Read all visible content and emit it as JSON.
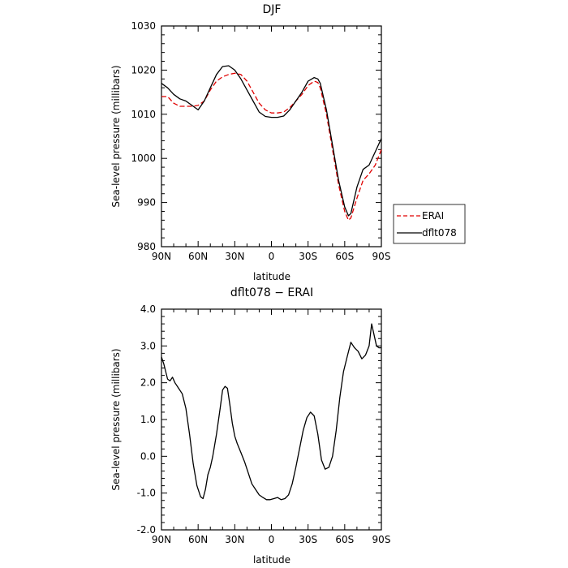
{
  "chart_data": [
    {
      "type": "line",
      "title": "DJF",
      "xlabel": "latitude",
      "ylabel": "Sea-level pressure (millibars)",
      "x_categories": [
        "90N",
        "60N",
        "30N",
        "0",
        "30S",
        "60S",
        "90S"
      ],
      "xlim": [
        90,
        -90
      ],
      "ylim": [
        980,
        1030
      ],
      "y_ticks": [
        980,
        990,
        1000,
        1010,
        1020,
        1030
      ],
      "grid": false,
      "legend": {
        "placement": "right",
        "entries": [
          "ERAI",
          "dflt078"
        ]
      },
      "series": [
        {
          "name": "ERAI",
          "color": "#e00000",
          "dash": "dashed",
          "x": [
            90,
            85,
            80,
            75,
            70,
            65,
            60,
            55,
            50,
            45,
            40,
            35,
            30,
            25,
            20,
            15,
            10,
            5,
            0,
            -5,
            -10,
            -15,
            -20,
            -25,
            -30,
            -35,
            -38,
            -40,
            -45,
            -50,
            -55,
            -60,
            -63,
            -65,
            -70,
            -75,
            -80,
            -85,
            -90
          ],
          "values": [
            1014,
            1014,
            1012.5,
            1011.8,
            1011.8,
            1011.8,
            1012,
            1013,
            1015.5,
            1017.5,
            1018.5,
            1019,
            1019.3,
            1019,
            1017.5,
            1015,
            1012.5,
            1011,
            1010.3,
            1010.3,
            1010.5,
            1011.5,
            1013,
            1014.5,
            1016.5,
            1017.5,
            1017.2,
            1016,
            1010,
            1002,
            994,
            988,
            986,
            986.5,
            991,
            995,
            996.5,
            998.5,
            1002
          ]
        },
        {
          "name": "dflt078",
          "color": "#000000",
          "dash": "solid",
          "x": [
            90,
            85,
            80,
            75,
            70,
            65,
            60,
            55,
            50,
            45,
            40,
            35,
            30,
            25,
            20,
            15,
            10,
            5,
            0,
            -5,
            -10,
            -15,
            -20,
            -25,
            -30,
            -35,
            -38,
            -40,
            -45,
            -50,
            -55,
            -60,
            -63,
            -65,
            -70,
            -75,
            -80,
            -85,
            -90
          ],
          "values": [
            1017,
            1016,
            1014.5,
            1013.5,
            1013,
            1012,
            1011,
            1013,
            1016,
            1019,
            1020.8,
            1021,
            1020,
            1018,
            1015.5,
            1013,
            1010.5,
            1009.5,
            1009.3,
            1009.3,
            1009.6,
            1011,
            1013,
            1015,
            1017.5,
            1018.3,
            1018,
            1017,
            1011,
            1003,
            995,
            989,
            987,
            987.5,
            993.5,
            997.5,
            998.5,
            1001.5,
            1004.5
          ]
        }
      ]
    },
    {
      "type": "line",
      "title": "dflt078 − ERAI",
      "xlabel": "latitude",
      "ylabel": "Sea-level pressure (millibars)",
      "x_categories": [
        "90N",
        "60N",
        "30N",
        "0",
        "30S",
        "60S",
        "90S"
      ],
      "xlim": [
        90,
        -90
      ],
      "ylim": [
        -2.0,
        4.0
      ],
      "y_ticks": [
        "-2.0",
        "-1.0",
        "0.0",
        "1.0",
        "2.0",
        "3.0",
        "4.0"
      ],
      "grid": false,
      "series": [
        {
          "color": "#000000",
          "dash": "solid",
          "x": [
            90,
            88,
            85,
            83,
            81,
            79,
            76,
            73,
            70,
            67,
            64,
            61,
            58,
            56,
            54,
            52,
            50,
            48,
            45,
            42,
            40,
            38,
            36,
            34,
            32,
            30,
            28,
            25,
            22,
            19,
            16,
            13,
            10,
            7,
            4,
            1,
            -2,
            -5,
            -8,
            -11,
            -14,
            -17,
            -20,
            -23,
            -26,
            -29,
            -32,
            -35,
            -38,
            -41,
            -44,
            -47,
            -50,
            -53,
            -56,
            -59,
            -62,
            -65,
            -68,
            -71,
            -74,
            -77,
            -80,
            -82,
            -84,
            -86,
            -88,
            -90
          ],
          "values": [
            2.7,
            2.5,
            2.1,
            2.05,
            2.15,
            2.0,
            1.85,
            1.7,
            1.3,
            0.6,
            -0.2,
            -0.8,
            -1.1,
            -1.15,
            -0.9,
            -0.5,
            -0.3,
            0.0,
            0.6,
            1.3,
            1.8,
            1.9,
            1.85,
            1.4,
            0.9,
            0.55,
            0.35,
            0.1,
            -0.15,
            -0.45,
            -0.75,
            -0.9,
            -1.05,
            -1.12,
            -1.18,
            -1.18,
            -1.15,
            -1.12,
            -1.18,
            -1.15,
            -1.05,
            -0.75,
            -0.3,
            0.2,
            0.7,
            1.05,
            1.2,
            1.1,
            0.6,
            -0.1,
            -0.35,
            -0.3,
            0.0,
            0.7,
            1.6,
            2.3,
            2.7,
            3.1,
            2.95,
            2.85,
            2.65,
            2.75,
            3.0,
            3.6,
            3.3,
            3.0,
            2.95,
            2.95
          ]
        }
      ]
    }
  ]
}
